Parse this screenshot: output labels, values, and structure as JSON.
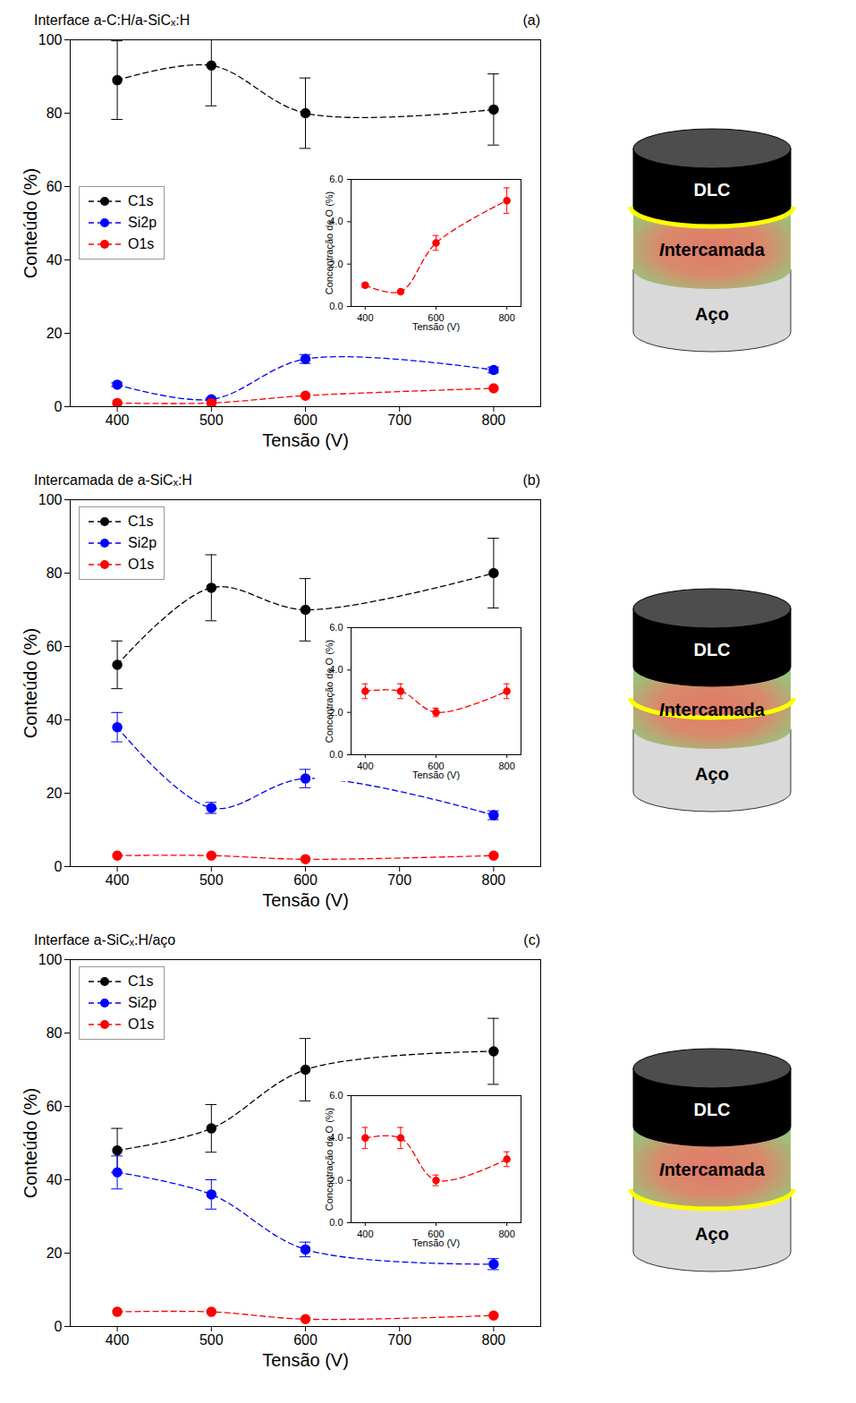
{
  "chart_data": [
    {
      "type": "line",
      "title": "Interface a-C:H/a-SiCₓ:H",
      "panel_label": "(a)",
      "xlabel": "Tensão (V)",
      "ylabel": "Conteúdo (%)",
      "x": [
        400,
        500,
        600,
        800
      ],
      "xlim": [
        350,
        850
      ],
      "xticks": [
        400,
        500,
        600,
        700,
        800
      ],
      "ylim": [
        0,
        100
      ],
      "yticks": [
        0,
        20,
        40,
        60,
        80,
        100
      ],
      "legend": "center left",
      "series": [
        {
          "name": "C1s",
          "color": "#000000",
          "marker": "circle",
          "line_style": "dashed",
          "values": [
            89,
            93,
            80,
            81
          ],
          "errors": [
            10.7,
            11,
            9.6,
            9.7
          ]
        },
        {
          "name": "Si2p",
          "color": "#0000ff",
          "marker": "circle",
          "line_style": "dashed",
          "values": [
            6,
            2,
            13,
            10
          ],
          "errors": [
            0.5,
            0.3,
            1.2,
            0.8
          ]
        },
        {
          "name": "O1s",
          "color": "#ff0000",
          "marker": "circle",
          "line_style": "dashed",
          "values": [
            1,
            1,
            3,
            5
          ]
        }
      ],
      "inset": {
        "type": "line",
        "xlabel": "Tensão (V)",
        "ylabel": "Concentração de O (%)",
        "x": [
          400,
          500,
          600,
          800
        ],
        "xlim": [
          360,
          840
        ],
        "xticks": [
          400,
          600,
          800
        ],
        "ylim": [
          0,
          6
        ],
        "yticks": [
          0,
          2,
          4,
          6
        ],
        "color": "#ff0000",
        "marker": "circle",
        "line_style": "dashed",
        "values": [
          1,
          0.7,
          3,
          5
        ],
        "errors": [
          0.1,
          0.05,
          0.35,
          0.6
        ]
      }
    },
    {
      "type": "line",
      "title": "Intercamada de a-SiCₓ:H",
      "panel_label": "(b)",
      "xlabel": "Tensão (V)",
      "ylabel": "Conteúdo (%)",
      "x": [
        400,
        500,
        600,
        800
      ],
      "xlim": [
        350,
        850
      ],
      "xticks": [
        400,
        500,
        600,
        700,
        800
      ],
      "ylim": [
        0,
        100
      ],
      "yticks": [
        0,
        20,
        40,
        60,
        80,
        100
      ],
      "legend": "upper left",
      "series": [
        {
          "name": "C1s",
          "color": "#000000",
          "marker": "circle",
          "line_style": "dashed",
          "values": [
            55,
            76,
            70,
            80
          ],
          "errors": [
            6.5,
            9,
            8.5,
            9.5
          ]
        },
        {
          "name": "Si2p",
          "color": "#0000ff",
          "marker": "circle",
          "line_style": "dashed",
          "values": [
            38,
            16,
            24,
            14
          ],
          "errors": [
            4,
            1.5,
            2.5,
            1.2
          ]
        },
        {
          "name": "O1s",
          "color": "#ff0000",
          "marker": "circle",
          "line_style": "dashed",
          "values": [
            3,
            3,
            2,
            3
          ]
        }
      ],
      "inset": {
        "type": "line",
        "xlabel": "Tensão (V)",
        "ylabel": "Concentração de O (%)",
        "x": [
          400,
          500,
          600,
          800
        ],
        "xlim": [
          360,
          840
        ],
        "xticks": [
          400,
          600,
          800
        ],
        "ylim": [
          0,
          6
        ],
        "yticks": [
          0,
          2,
          4,
          6
        ],
        "color": "#ff0000",
        "marker": "circle",
        "line_style": "dashed",
        "values": [
          3,
          3,
          2,
          3
        ],
        "errors": [
          0.35,
          0.35,
          0.2,
          0.35
        ]
      }
    },
    {
      "type": "line",
      "title": "Interface a-SiCₓ:H/aço",
      "panel_label": "(c)",
      "xlabel": "Tensão (V)",
      "ylabel": "Conteúdo (%)",
      "x": [
        400,
        500,
        600,
        800
      ],
      "xlim": [
        350,
        850
      ],
      "xticks": [
        400,
        500,
        600,
        700,
        800
      ],
      "ylim": [
        0,
        100
      ],
      "yticks": [
        0,
        20,
        40,
        60,
        80,
        100
      ],
      "legend": "upper left",
      "series": [
        {
          "name": "C1s",
          "color": "#000000",
          "marker": "circle",
          "line_style": "dashed",
          "values": [
            48,
            54,
            70,
            75
          ],
          "errors": [
            6,
            6.5,
            8.5,
            9
          ]
        },
        {
          "name": "Si2p",
          "color": "#0000ff",
          "marker": "circle",
          "line_style": "dashed",
          "values": [
            42,
            36,
            21,
            17
          ],
          "errors": [
            4.5,
            4,
            2,
            1.5
          ]
        },
        {
          "name": "O1s",
          "color": "#ff0000",
          "marker": "circle",
          "line_style": "dashed",
          "values": [
            4,
            4,
            2,
            3
          ]
        }
      ],
      "inset": {
        "type": "line",
        "xlabel": "Tensão (V)",
        "ylabel": "Concentração de O (%)",
        "x": [
          400,
          500,
          600,
          800
        ],
        "xlim": [
          360,
          840
        ],
        "xticks": [
          400,
          600,
          800
        ],
        "ylim": [
          0,
          6
        ],
        "yticks": [
          0,
          2,
          4,
          6
        ],
        "color": "#ff0000",
        "marker": "circle",
        "line_style": "dashed",
        "values": [
          4,
          4,
          2,
          3
        ],
        "errors": [
          0.5,
          0.5,
          0.25,
          0.35
        ]
      }
    }
  ],
  "diagram": {
    "layers": [
      "DLC",
      "Intercamada",
      "Aço"
    ]
  }
}
